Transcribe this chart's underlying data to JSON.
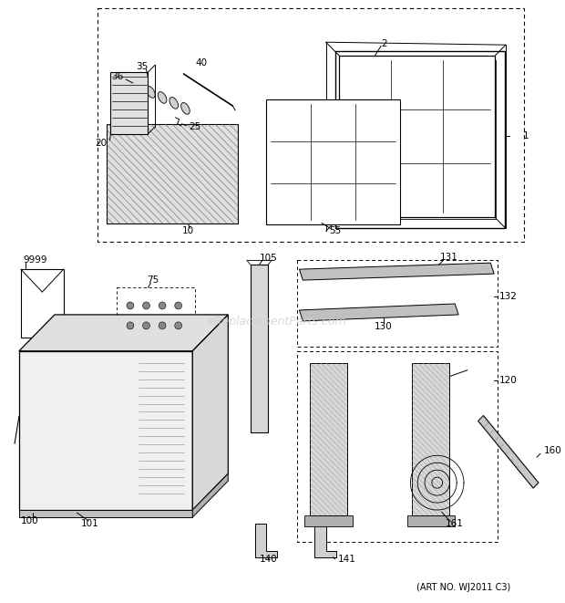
{
  "art_no": "(ART NO. WJ2011 C3)",
  "watermark": "eReplacementParts.com",
  "bg_color": "#ffffff",
  "lc": "black",
  "lw": 0.7
}
